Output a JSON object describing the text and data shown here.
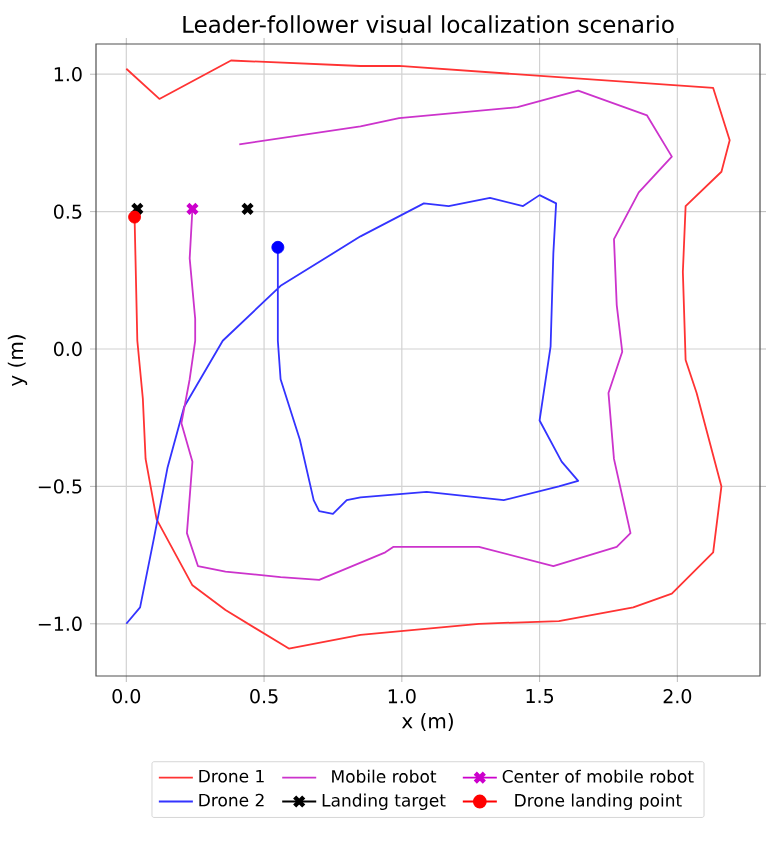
{
  "chart_data": {
    "type": "line",
    "title": "Leader-follower visual localization scenario",
    "xlabel": "x (m)",
    "ylabel": "y (m)",
    "xlim": [
      -0.11,
      2.3
    ],
    "ylim": [
      -1.19,
      1.11
    ],
    "xticks": [
      {
        "value": 0,
        "label": "0.0"
      },
      {
        "value": 0.5,
        "label": "0.5"
      },
      {
        "value": 1,
        "label": "1.0"
      },
      {
        "value": 1.5,
        "label": "1.5"
      },
      {
        "value": 2,
        "label": "2.0"
      }
    ],
    "yticks": [
      {
        "value": -1,
        "label": "−1.0"
      },
      {
        "value": -0.5,
        "label": "−0.5"
      },
      {
        "value": 0,
        "label": "0.0"
      },
      {
        "value": 0.5,
        "label": "0.5"
      },
      {
        "value": 1,
        "label": "1.0"
      }
    ],
    "grid": true,
    "legend": "bottom",
    "series": [
      {
        "name": "Drone 1",
        "color": "#ff3333",
        "x": [
          0.0,
          0.12,
          0.38,
          0.85,
          0.99,
          2.13,
          2.19,
          2.16,
          2.03,
          2.02,
          2.03,
          2.07,
          2.16,
          2.13,
          1.98,
          1.84,
          1.57,
          1.28,
          0.85,
          0.59,
          0.36,
          0.24,
          0.11,
          0.07,
          0.06,
          0.04,
          0.03
        ],
        "values": [
          1.02,
          0.91,
          1.05,
          1.03,
          1.03,
          0.95,
          0.76,
          0.645,
          0.52,
          0.28,
          -0.04,
          -0.16,
          -0.5,
          -0.74,
          -0.89,
          -0.94,
          -0.99,
          -1.0,
          -1.04,
          -1.09,
          -0.95,
          -0.86,
          -0.62,
          -0.4,
          -0.18,
          0.03,
          0.48
        ]
      },
      {
        "name": "Drone 2",
        "color": "#3333ff",
        "x": [
          0.0,
          0.05,
          0.1,
          0.15,
          0.21,
          0.35,
          0.56,
          0.85,
          1.08,
          1.17,
          1.32,
          1.44,
          1.5,
          1.56,
          1.55,
          1.54,
          1.5,
          1.58,
          1.64,
          1.57,
          1.37,
          1.09,
          0.85,
          0.8,
          0.75,
          0.7,
          0.68,
          0.63,
          0.56,
          0.55,
          0.55
        ],
        "values": [
          -1.0,
          -0.94,
          -0.69,
          -0.43,
          -0.21,
          0.03,
          0.23,
          0.41,
          0.53,
          0.52,
          0.55,
          0.52,
          0.56,
          0.53,
          0.35,
          0.01,
          -0.26,
          -0.41,
          -0.48,
          -0.5,
          -0.55,
          -0.52,
          -0.54,
          -0.55,
          -0.6,
          -0.59,
          -0.55,
          -0.33,
          -0.11,
          0.03,
          0.37
        ]
      },
      {
        "name": "Mobile robot",
        "color": "#cc33cc",
        "x": [
          0.41,
          0.85,
          0.99,
          1.42,
          1.64,
          1.89,
          1.98,
          1.86,
          1.77,
          1.78,
          1.8,
          1.75,
          1.77,
          1.83,
          1.78,
          1.55,
          1.28,
          0.97,
          0.94,
          0.7,
          0.56,
          0.36,
          0.26,
          0.22,
          0.24,
          0.2,
          0.23,
          0.25,
          0.25,
          0.23,
          0.24
        ],
        "values": [
          0.745,
          0.81,
          0.84,
          0.88,
          0.94,
          0.85,
          0.7,
          0.57,
          0.4,
          0.16,
          -0.01,
          -0.16,
          -0.4,
          -0.67,
          -0.72,
          -0.79,
          -0.72,
          -0.72,
          -0.74,
          -0.84,
          -0.83,
          -0.81,
          -0.79,
          -0.67,
          -0.41,
          -0.27,
          -0.11,
          0.03,
          0.11,
          0.33,
          0.51
        ]
      },
      {
        "name": "Landing target",
        "type": "scatter",
        "marker": "cross",
        "color": "#000000",
        "x": [
          0.04,
          0.44
        ],
        "values": [
          0.51,
          0.51
        ]
      },
      {
        "name": "Center of mobile robot",
        "type": "scatter",
        "marker": "cross",
        "color": "#cc00cc",
        "x": [
          0.24
        ],
        "values": [
          0.51
        ]
      },
      {
        "name": "Drone landing point",
        "type": "scatter",
        "marker": "circle",
        "color": "#ff0000",
        "colors": [
          "#ff0000",
          "#0000ff"
        ],
        "x": [
          0.03,
          0.55
        ],
        "values": [
          0.48,
          0.37
        ]
      }
    ]
  }
}
